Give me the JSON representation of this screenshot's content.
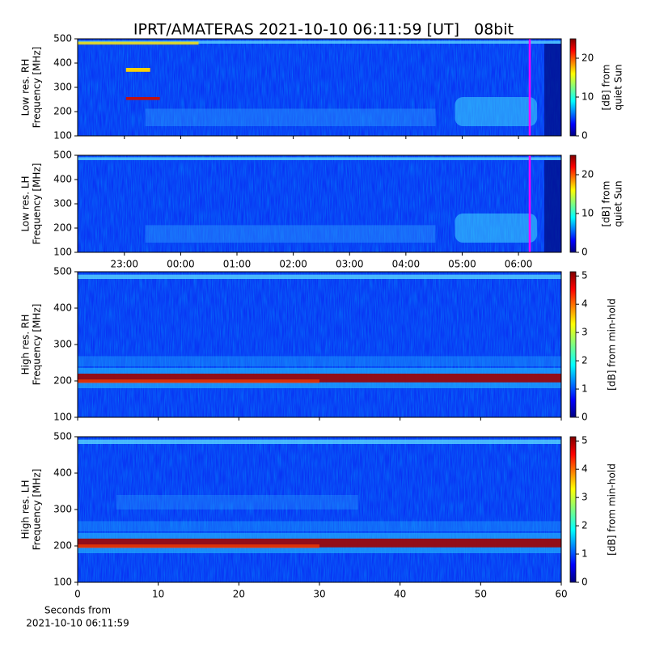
{
  "title": "IPRT/AMATERAS 2021-10-10 06:11:59 [UT]   08bit",
  "chart_data": [
    {
      "type": "spectrogram",
      "ylabel": [
        "Low res. RH",
        "Frequency [MHz]"
      ],
      "ylim": [
        100,
        500
      ],
      "yticks": [
        100,
        200,
        300,
        400,
        500
      ],
      "xlim": [
        22.17,
        30.76
      ],
      "xticks": [
        23,
        24,
        25,
        26,
        27,
        28,
        29,
        30
      ],
      "xtick_labels": false,
      "vline": 30.2,
      "vline_color": "#ff00ff",
      "colormap": "jet",
      "clim": [
        0,
        25
      ],
      "cticks": [
        0,
        10,
        20
      ],
      "clabel": [
        "[dB] from",
        "quiet Sun"
      ]
    },
    {
      "type": "spectrogram",
      "ylabel": [
        "Low res. LH",
        "Frequency [MHz]"
      ],
      "ylim": [
        100,
        500
      ],
      "yticks": [
        100,
        200,
        300,
        400,
        500
      ],
      "xlim": [
        22.17,
        30.76
      ],
      "xticks": [
        {
          "value": 23,
          "label": "23:00"
        },
        {
          "value": 24,
          "label": "00:00"
        },
        {
          "value": 25,
          "label": "01:00"
        },
        {
          "value": 26,
          "label": "02:00"
        },
        {
          "value": 27,
          "label": "03:00"
        },
        {
          "value": 28,
          "label": "04:00"
        },
        {
          "value": 29,
          "label": "05:00"
        },
        {
          "value": 30,
          "label": "06:00"
        }
      ],
      "xtick_labels": true,
      "vline": 30.2,
      "vline_color": "#ff00ff",
      "colormap": "jet",
      "clim": [
        0,
        25
      ],
      "cticks": [
        0,
        10,
        20
      ],
      "clabel": [
        "[dB] from",
        "quiet Sun"
      ]
    },
    {
      "type": "spectrogram",
      "ylabel": [
        "High res. RH",
        "Frequency [MHz]"
      ],
      "ylim": [
        100,
        500
      ],
      "yticks": [
        100,
        200,
        300,
        400,
        500
      ],
      "xlim": [
        0,
        60
      ],
      "xticks": [
        0,
        10,
        20,
        30,
        40,
        50,
        60
      ],
      "xtick_labels": false,
      "colormap": "jet",
      "clim": [
        0,
        5.15
      ],
      "cticks": [
        0,
        1,
        2,
        3,
        4,
        5
      ],
      "clabel": [
        "[dB] from min-hold"
      ]
    },
    {
      "type": "spectrogram",
      "ylabel": [
        "High res. LH",
        "Frequency [MHz]"
      ],
      "ylim": [
        100,
        500
      ],
      "yticks": [
        100,
        200,
        300,
        400,
        500
      ],
      "xlim": [
        0,
        60
      ],
      "xticks": [
        0,
        10,
        20,
        30,
        40,
        50,
        60
      ],
      "xtick_labels": true,
      "colormap": "jet",
      "clim": [
        0,
        5.15
      ],
      "cticks": [
        0,
        1,
        2,
        3,
        4,
        5
      ],
      "clabel": [
        "[dB] from min-hold"
      ],
      "xlabel": [
        "Seconds from",
        "2021-10-10 06:11:59"
      ]
    }
  ]
}
